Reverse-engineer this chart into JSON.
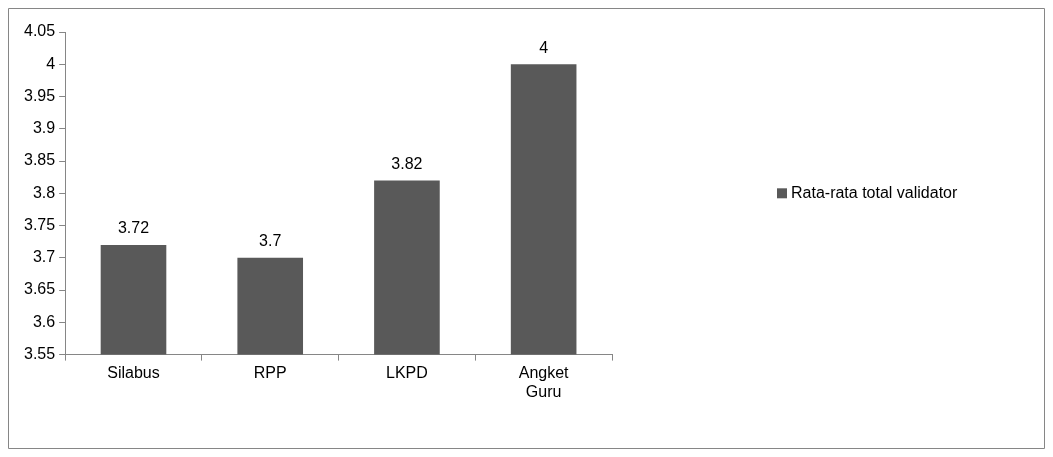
{
  "chart_data": {
    "type": "bar",
    "categories": [
      "Silabus",
      "RPP",
      "LKPD",
      "Angket Guru"
    ],
    "series": [
      {
        "name": "Rata-rata total validator",
        "color": "#595959",
        "values": [
          3.72,
          3.7,
          3.82,
          4
        ]
      }
    ],
    "ylim": [
      3.55,
      4.05
    ],
    "yticks": [
      3.55,
      3.6,
      3.65,
      3.7,
      3.75,
      3.8,
      3.85,
      3.9,
      3.95,
      4,
      4.05
    ],
    "data_labels": true,
    "legend": "right"
  }
}
